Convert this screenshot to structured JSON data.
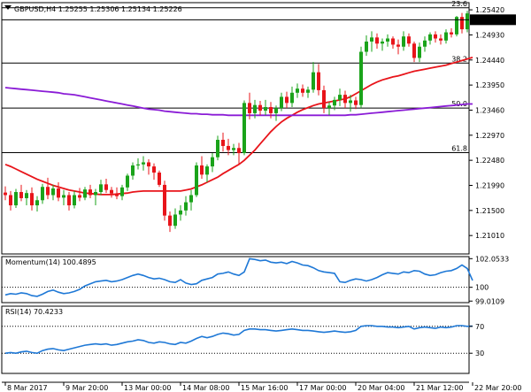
{
  "chart_data": {
    "type": "candlestick",
    "symbol_header": "GBPUSD,H4  1.25255 1.25306 1.25134 1.25226",
    "price_axis": {
      "ylim": [
        1.2065,
        1.2556
      ],
      "tick_labels": [
        "1.25420",
        "1.24930",
        "1.24440",
        "1.23950",
        "1.23460",
        "1.22970",
        "1.22480",
        "1.21990",
        "1.21500",
        "1.21010"
      ],
      "tick_values": [
        1.2542,
        1.2493,
        1.2444,
        1.2395,
        1.2346,
        1.2297,
        1.2248,
        1.2199,
        1.215,
        1.2101
      ],
      "current_price_label": "1.25226",
      "current_price": 1.25226
    },
    "fibonacci_levels": [
      {
        "label": "23.6",
        "price": 1.2546
      },
      {
        "label": "38.2",
        "price": 1.2438
      },
      {
        "label": "50.0",
        "price": 1.235
      },
      {
        "label": "61.8",
        "price": 1.2263
      }
    ],
    "time_axis": {
      "labels": [
        "8 Mar 2017",
        "9 Mar 20:00",
        "13 Mar 00:00",
        "14 Mar 08:00",
        "15 Mar 16:00",
        "17 Mar 00:00",
        "20 Mar 04:00",
        "21 Mar 12:00",
        "22 Mar 20:00"
      ],
      "label_bar_index": [
        0,
        11,
        22,
        33,
        44,
        55,
        66,
        77,
        88
      ]
    },
    "candles": [
      {
        "o": 1.2185,
        "h": 1.2197,
        "l": 1.217,
        "c": 1.218
      },
      {
        "o": 1.218,
        "h": 1.2188,
        "l": 1.215,
        "c": 1.216
      },
      {
        "o": 1.216,
        "h": 1.2192,
        "l": 1.2155,
        "c": 1.2186
      },
      {
        "o": 1.2186,
        "h": 1.22,
        "l": 1.2168,
        "c": 1.2174
      },
      {
        "o": 1.2174,
        "h": 1.219,
        "l": 1.216,
        "c": 1.2184
      },
      {
        "o": 1.2184,
        "h": 1.2195,
        "l": 1.215,
        "c": 1.216
      },
      {
        "o": 1.216,
        "h": 1.2178,
        "l": 1.2148,
        "c": 1.217
      },
      {
        "o": 1.217,
        "h": 1.2202,
        "l": 1.2163,
        "c": 1.2196
      },
      {
        "o": 1.2196,
        "h": 1.2214,
        "l": 1.2172,
        "c": 1.218
      },
      {
        "o": 1.218,
        "h": 1.22,
        "l": 1.217,
        "c": 1.2193
      },
      {
        "o": 1.2193,
        "h": 1.2205,
        "l": 1.2168,
        "c": 1.2175
      },
      {
        "o": 1.2175,
        "h": 1.219,
        "l": 1.216,
        "c": 1.218
      },
      {
        "o": 1.218,
        "h": 1.2186,
        "l": 1.215,
        "c": 1.216
      },
      {
        "o": 1.216,
        "h": 1.2188,
        "l": 1.2154,
        "c": 1.218
      },
      {
        "o": 1.218,
        "h": 1.2194,
        "l": 1.2168,
        "c": 1.2175
      },
      {
        "o": 1.2175,
        "h": 1.2196,
        "l": 1.217,
        "c": 1.2191
      },
      {
        "o": 1.2191,
        "h": 1.22,
        "l": 1.2174,
        "c": 1.218
      },
      {
        "o": 1.218,
        "h": 1.2192,
        "l": 1.216,
        "c": 1.2186
      },
      {
        "o": 1.2186,
        "h": 1.221,
        "l": 1.218,
        "c": 1.2201
      },
      {
        "o": 1.2201,
        "h": 1.2212,
        "l": 1.2184,
        "c": 1.219
      },
      {
        "o": 1.219,
        "h": 1.2196,
        "l": 1.2175,
        "c": 1.2183
      },
      {
        "o": 1.2183,
        "h": 1.2195,
        "l": 1.2172,
        "c": 1.2178
      },
      {
        "o": 1.2178,
        "h": 1.22,
        "l": 1.217,
        "c": 1.2195
      },
      {
        "o": 1.2195,
        "h": 1.2222,
        "l": 1.2188,
        "c": 1.2218
      },
      {
        "o": 1.2218,
        "h": 1.2244,
        "l": 1.221,
        "c": 1.2238
      },
      {
        "o": 1.2238,
        "h": 1.2252,
        "l": 1.223,
        "c": 1.224
      },
      {
        "o": 1.224,
        "h": 1.2256,
        "l": 1.2228,
        "c": 1.2244
      },
      {
        "o": 1.2244,
        "h": 1.225,
        "l": 1.222,
        "c": 1.2236
      },
      {
        "o": 1.2236,
        "h": 1.2242,
        "l": 1.221,
        "c": 1.2224
      },
      {
        "o": 1.2224,
        "h": 1.2228,
        "l": 1.2196,
        "c": 1.22
      },
      {
        "o": 1.22,
        "h": 1.2208,
        "l": 1.213,
        "c": 1.214
      },
      {
        "o": 1.214,
        "h": 1.2148,
        "l": 1.2108,
        "c": 1.212
      },
      {
        "o": 1.212,
        "h": 1.2154,
        "l": 1.2114,
        "c": 1.2142
      },
      {
        "o": 1.2142,
        "h": 1.216,
        "l": 1.213,
        "c": 1.215
      },
      {
        "o": 1.215,
        "h": 1.2178,
        "l": 1.214,
        "c": 1.2166
      },
      {
        "o": 1.2166,
        "h": 1.219,
        "l": 1.215,
        "c": 1.218
      },
      {
        "o": 1.218,
        "h": 1.2244,
        "l": 1.2176,
        "c": 1.2238
      },
      {
        "o": 1.2238,
        "h": 1.2256,
        "l": 1.2212,
        "c": 1.222
      },
      {
        "o": 1.222,
        "h": 1.224,
        "l": 1.2205,
        "c": 1.2236
      },
      {
        "o": 1.2236,
        "h": 1.2262,
        "l": 1.2225,
        "c": 1.2254
      },
      {
        "o": 1.2254,
        "h": 1.2296,
        "l": 1.2248,
        "c": 1.2288
      },
      {
        "o": 1.2288,
        "h": 1.2302,
        "l": 1.2265,
        "c": 1.2276
      },
      {
        "o": 1.2276,
        "h": 1.229,
        "l": 1.2258,
        "c": 1.2268
      },
      {
        "o": 1.2268,
        "h": 1.228,
        "l": 1.2258,
        "c": 1.2272
      },
      {
        "o": 1.2272,
        "h": 1.2282,
        "l": 1.224,
        "c": 1.2262
      },
      {
        "o": 1.2262,
        "h": 1.2365,
        "l": 1.2258,
        "c": 1.236
      },
      {
        "o": 1.236,
        "h": 1.238,
        "l": 1.2328,
        "c": 1.234
      },
      {
        "o": 1.234,
        "h": 1.2366,
        "l": 1.233,
        "c": 1.2356
      },
      {
        "o": 1.2356,
        "h": 1.2364,
        "l": 1.2336,
        "c": 1.2345
      },
      {
        "o": 1.2345,
        "h": 1.2366,
        "l": 1.2336,
        "c": 1.2352
      },
      {
        "o": 1.2352,
        "h": 1.2362,
        "l": 1.233,
        "c": 1.234
      },
      {
        "o": 1.234,
        "h": 1.2355,
        "l": 1.2325,
        "c": 1.235
      },
      {
        "o": 1.235,
        "h": 1.238,
        "l": 1.2344,
        "c": 1.2372
      },
      {
        "o": 1.2372,
        "h": 1.2382,
        "l": 1.235,
        "c": 1.236
      },
      {
        "o": 1.236,
        "h": 1.2392,
        "l": 1.2352,
        "c": 1.238
      },
      {
        "o": 1.238,
        "h": 1.2398,
        "l": 1.237,
        "c": 1.2388
      },
      {
        "o": 1.2388,
        "h": 1.2396,
        "l": 1.2372,
        "c": 1.238
      },
      {
        "o": 1.238,
        "h": 1.2392,
        "l": 1.237,
        "c": 1.2386
      },
      {
        "o": 1.2386,
        "h": 1.244,
        "l": 1.238,
        "c": 1.242
      },
      {
        "o": 1.242,
        "h": 1.2436,
        "l": 1.2375,
        "c": 1.2385
      },
      {
        "o": 1.2385,
        "h": 1.2394,
        "l": 1.234,
        "c": 1.235
      },
      {
        "o": 1.235,
        "h": 1.2362,
        "l": 1.2336,
        "c": 1.2355
      },
      {
        "o": 1.2355,
        "h": 1.2372,
        "l": 1.2346,
        "c": 1.2366
      },
      {
        "o": 1.2366,
        "h": 1.2388,
        "l": 1.2354,
        "c": 1.2376
      },
      {
        "o": 1.2376,
        "h": 1.2384,
        "l": 1.235,
        "c": 1.236
      },
      {
        "o": 1.236,
        "h": 1.2376,
        "l": 1.2343,
        "c": 1.2365
      },
      {
        "o": 1.2365,
        "h": 1.2372,
        "l": 1.2348,
        "c": 1.2356
      },
      {
        "o": 1.2356,
        "h": 1.247,
        "l": 1.235,
        "c": 1.246
      },
      {
        "o": 1.246,
        "h": 1.2492,
        "l": 1.2452,
        "c": 1.248
      },
      {
        "o": 1.248,
        "h": 1.25,
        "l": 1.246,
        "c": 1.2488
      },
      {
        "o": 1.2488,
        "h": 1.2496,
        "l": 1.2466,
        "c": 1.2476
      },
      {
        "o": 1.2476,
        "h": 1.2486,
        "l": 1.2462,
        "c": 1.248
      },
      {
        "o": 1.248,
        "h": 1.2494,
        "l": 1.247,
        "c": 1.2486
      },
      {
        "o": 1.2486,
        "h": 1.249,
        "l": 1.2466,
        "c": 1.2474
      },
      {
        "o": 1.2474,
        "h": 1.2484,
        "l": 1.2455,
        "c": 1.247
      },
      {
        "o": 1.247,
        "h": 1.25,
        "l": 1.2462,
        "c": 1.249
      },
      {
        "o": 1.249,
        "h": 1.2496,
        "l": 1.247,
        "c": 1.2476
      },
      {
        "o": 1.2476,
        "h": 1.248,
        "l": 1.244,
        "c": 1.2448
      },
      {
        "o": 1.2448,
        "h": 1.2478,
        "l": 1.244,
        "c": 1.247
      },
      {
        "o": 1.247,
        "h": 1.249,
        "l": 1.246,
        "c": 1.2482
      },
      {
        "o": 1.2482,
        "h": 1.2498,
        "l": 1.2474,
        "c": 1.2494
      },
      {
        "o": 1.2494,
        "h": 1.25,
        "l": 1.2478,
        "c": 1.2486
      },
      {
        "o": 1.2486,
        "h": 1.2494,
        "l": 1.2474,
        "c": 1.2482
      },
      {
        "o": 1.2482,
        "h": 1.2504,
        "l": 1.2476,
        "c": 1.2498
      },
      {
        "o": 1.2498,
        "h": 1.2506,
        "l": 1.2488,
        "c": 1.2494
      },
      {
        "o": 1.2494,
        "h": 1.253,
        "l": 1.249,
        "c": 1.2528
      },
      {
        "o": 1.2528,
        "h": 1.2536,
        "l": 1.2496,
        "c": 1.2504
      },
      {
        "o": 1.2504,
        "h": 1.254,
        "l": 1.2498,
        "c": 1.2535
      },
      {
        "o": 1.2525,
        "h": 1.2531,
        "l": 1.2513,
        "c": 1.2523
      }
    ],
    "overlays": [
      {
        "color": "#e8141a",
        "values": [
          1.224,
          1.2236,
          1.2231,
          1.2226,
          1.2221,
          1.2216,
          1.2211,
          1.2207,
          1.2203,
          1.2199,
          1.2196,
          1.2193,
          1.219,
          1.2188,
          1.2186,
          1.2184,
          1.2183,
          1.2182,
          1.2181,
          1.2181,
          1.2181,
          1.2182,
          1.2183,
          1.2184,
          1.2186,
          1.2187,
          1.2188,
          1.2188,
          1.2188,
          1.2188,
          1.2188,
          1.2188,
          1.2188,
          1.2188,
          1.219,
          1.2192,
          1.2196,
          1.22,
          1.2205,
          1.221,
          1.2215,
          1.2222,
          1.2228,
          1.2234,
          1.224,
          1.2248,
          1.2258,
          1.2268,
          1.228,
          1.2292,
          1.2304,
          1.2314,
          1.2323,
          1.233,
          1.2336,
          1.2342,
          1.2347,
          1.2351,
          1.2355,
          1.2358,
          1.236,
          1.2362,
          1.2364,
          1.2366,
          1.2368,
          1.2372,
          1.2378,
          1.2384,
          1.239,
          1.2396,
          1.2401,
          1.2405,
          1.2408,
          1.2411,
          1.2413,
          1.2416,
          1.2419,
          1.2422,
          1.2424,
          1.2426,
          1.2428,
          1.243,
          1.2432,
          1.2434,
          1.2437,
          1.244,
          1.2443,
          1.2446,
          1.2449
        ]
      },
      {
        "color": "#8a1bd6",
        "values": [
          1.239,
          1.2389,
          1.2388,
          1.2387,
          1.2386,
          1.2385,
          1.2384,
          1.2383,
          1.2382,
          1.2381,
          1.238,
          1.2378,
          1.2377,
          1.2376,
          1.2374,
          1.2372,
          1.237,
          1.2368,
          1.2366,
          1.2364,
          1.2362,
          1.236,
          1.2358,
          1.2356,
          1.2354,
          1.2352,
          1.235,
          1.2348,
          1.2347,
          1.2346,
          1.2344,
          1.2343,
          1.2342,
          1.2341,
          1.234,
          1.2339,
          1.2339,
          1.2338,
          1.2338,
          1.2337,
          1.2337,
          1.2337,
          1.2336,
          1.2336,
          1.2336,
          1.2336,
          1.2336,
          1.2336,
          1.2336,
          1.2336,
          1.2336,
          1.2336,
          1.2336,
          1.2336,
          1.2336,
          1.2336,
          1.2336,
          1.2336,
          1.2336,
          1.2336,
          1.2336,
          1.2336,
          1.2336,
          1.2336,
          1.2336,
          1.2337,
          1.2337,
          1.2338,
          1.2339,
          1.234,
          1.2341,
          1.2342,
          1.2343,
          1.2344,
          1.2345,
          1.2346,
          1.2347,
          1.2348,
          1.2349,
          1.235,
          1.2351,
          1.2352,
          1.2353,
          1.2354,
          1.2355,
          1.2356,
          1.2357,
          1.2358,
          1.2358
        ]
      }
    ],
    "momentum": {
      "header": "Momentum(14) 100.4895",
      "ylim": [
        98.9,
        102.2
      ],
      "tick_labels": [
        "102.0533",
        "100",
        "99.0109"
      ],
      "tick_values": [
        102.0533,
        100.0,
        99.0109
      ],
      "ref_level": 100.0,
      "color": "#1e78d6",
      "values": [
        99.45,
        99.55,
        99.5,
        99.6,
        99.55,
        99.4,
        99.35,
        99.5,
        99.7,
        99.8,
        99.65,
        99.55,
        99.6,
        99.7,
        99.85,
        100.1,
        100.25,
        100.4,
        100.45,
        100.5,
        100.4,
        100.45,
        100.55,
        100.7,
        100.85,
        100.95,
        100.85,
        100.7,
        100.6,
        100.65,
        100.55,
        100.4,
        100.35,
        100.55,
        100.3,
        100.2,
        100.25,
        100.5,
        100.6,
        100.7,
        100.95,
        101.0,
        101.1,
        100.95,
        100.85,
        101.1,
        102.05,
        102.0,
        101.9,
        101.95,
        101.8,
        101.75,
        101.8,
        101.7,
        101.85,
        101.75,
        101.6,
        101.55,
        101.4,
        101.2,
        101.1,
        101.05,
        101.0,
        100.4,
        100.35,
        100.5,
        100.6,
        100.55,
        100.45,
        100.55,
        100.7,
        100.9,
        101.05,
        101.0,
        100.95,
        101.1,
        101.05,
        101.2,
        101.15,
        100.95,
        100.85,
        100.9,
        101.05,
        101.15,
        101.2,
        101.35,
        101.6,
        101.35,
        100.49
      ]
    },
    "rsi": {
      "header": "RSI(14) 70.4233",
      "ylim": [
        0,
        100
      ],
      "tick_labels": [
        "70",
        "30"
      ],
      "tick_values": [
        70,
        30
      ],
      "levels": [
        70,
        30
      ],
      "color": "#1e78d6",
      "values": [
        30,
        31,
        30,
        32,
        33,
        31,
        30,
        34,
        36,
        37,
        35,
        34,
        36,
        38,
        40,
        42,
        43,
        44,
        43,
        44,
        42,
        43,
        45,
        47,
        48,
        50,
        49,
        46,
        45,
        47,
        46,
        44,
        43,
        46,
        45,
        48,
        52,
        55,
        53,
        55,
        58,
        60,
        59,
        57,
        58,
        64,
        66,
        66,
        65,
        65,
        64,
        63,
        64,
        65,
        66,
        65,
        64,
        64,
        63,
        62,
        61,
        62,
        63,
        62,
        61,
        62,
        64,
        70,
        71,
        71,
        70,
        70,
        69,
        69,
        68,
        69,
        70,
        66,
        68,
        69,
        68,
        67,
        69,
        68,
        69,
        71,
        71,
        70,
        70.4
      ]
    }
  }
}
